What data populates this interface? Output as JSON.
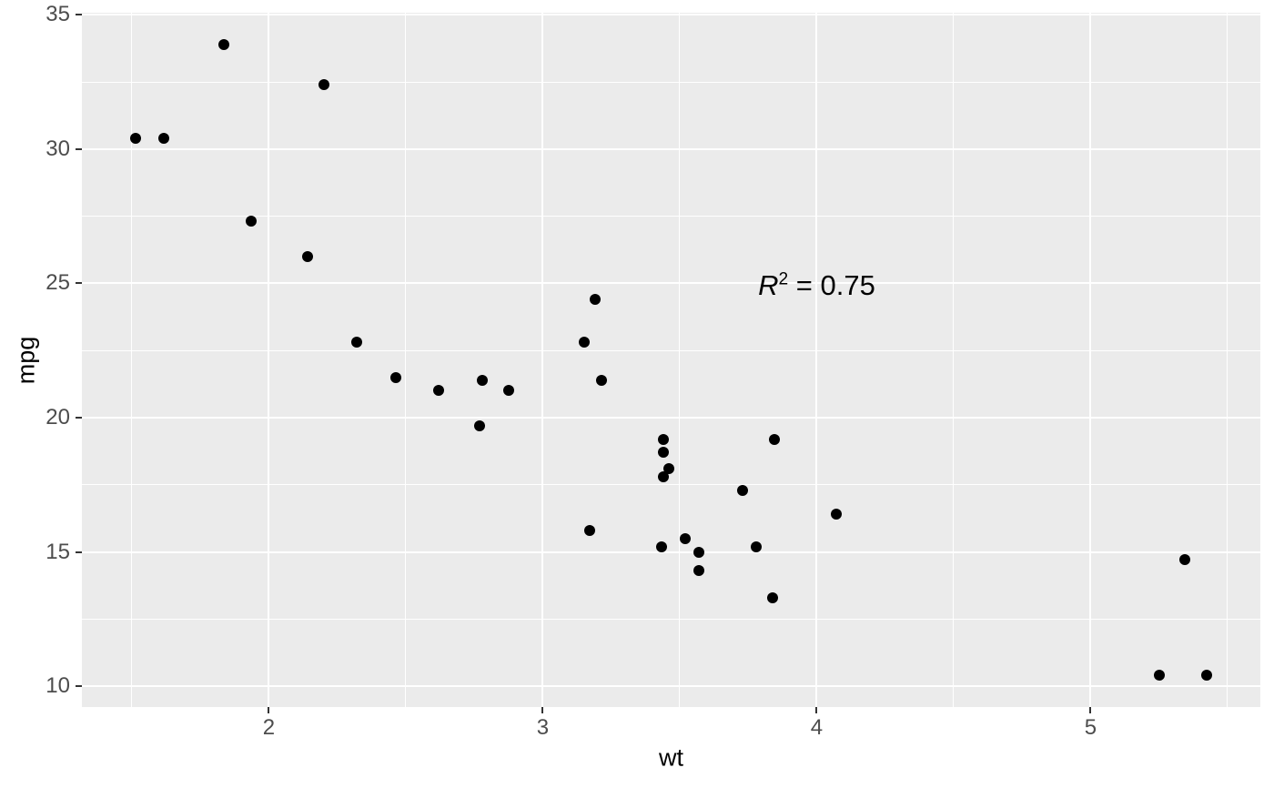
{
  "colors": {
    "figure_background": "#FFFFFF",
    "panel_background": "#EBEBEB",
    "gridline": "#FFFFFF",
    "point": "#000000",
    "tick_mark": "#333333",
    "tick_label": "#4D4D4D",
    "axis_title": "#000000",
    "annotation_text": "#000000"
  },
  "chart_data": {
    "type": "scatter",
    "title": "",
    "xlabel": "wt",
    "ylabel": "mpg",
    "xlim": [
      1.3174,
      5.6196
    ],
    "ylim": [
      9.225,
      35.075
    ],
    "x_major_ticks": [
      2,
      3,
      4,
      5
    ],
    "y_major_ticks": [
      10,
      15,
      20,
      25,
      30,
      35
    ],
    "x_minor_gridlines": [
      1.5,
      2.5,
      3.5,
      4.5,
      5.5
    ],
    "y_minor_gridlines": [
      12.5,
      17.5,
      22.5,
      27.5,
      32.5
    ],
    "grid": true,
    "legend": false,
    "annotation": {
      "label": "R^2 = 0.75",
      "variable": "R",
      "exponent": "2",
      "rest": " = 0.75",
      "x": 4,
      "y": 25
    },
    "points": [
      {
        "wt": 2.62,
        "mpg": 21.0
      },
      {
        "wt": 2.875,
        "mpg": 21.0
      },
      {
        "wt": 2.32,
        "mpg": 22.8
      },
      {
        "wt": 3.215,
        "mpg": 21.4
      },
      {
        "wt": 3.44,
        "mpg": 18.7
      },
      {
        "wt": 3.46,
        "mpg": 18.1
      },
      {
        "wt": 3.57,
        "mpg": 14.3
      },
      {
        "wt": 3.19,
        "mpg": 24.4
      },
      {
        "wt": 3.15,
        "mpg": 22.8
      },
      {
        "wt": 3.44,
        "mpg": 19.2
      },
      {
        "wt": 3.44,
        "mpg": 17.8
      },
      {
        "wt": 4.07,
        "mpg": 16.4
      },
      {
        "wt": 3.73,
        "mpg": 17.3
      },
      {
        "wt": 3.78,
        "mpg": 15.2
      },
      {
        "wt": 5.25,
        "mpg": 10.4
      },
      {
        "wt": 5.424,
        "mpg": 10.4
      },
      {
        "wt": 5.345,
        "mpg": 14.7
      },
      {
        "wt": 2.2,
        "mpg": 32.4
      },
      {
        "wt": 1.615,
        "mpg": 30.4
      },
      {
        "wt": 1.835,
        "mpg": 33.9
      },
      {
        "wt": 2.465,
        "mpg": 21.5
      },
      {
        "wt": 3.52,
        "mpg": 15.5
      },
      {
        "wt": 3.435,
        "mpg": 15.2
      },
      {
        "wt": 3.84,
        "mpg": 13.3
      },
      {
        "wt": 3.845,
        "mpg": 19.2
      },
      {
        "wt": 1.935,
        "mpg": 27.3
      },
      {
        "wt": 2.14,
        "mpg": 26.0
      },
      {
        "wt": 1.513,
        "mpg": 30.4
      },
      {
        "wt": 3.17,
        "mpg": 15.8
      },
      {
        "wt": 2.77,
        "mpg": 19.7
      },
      {
        "wt": 3.57,
        "mpg": 15.0
      },
      {
        "wt": 2.78,
        "mpg": 21.4
      }
    ]
  }
}
